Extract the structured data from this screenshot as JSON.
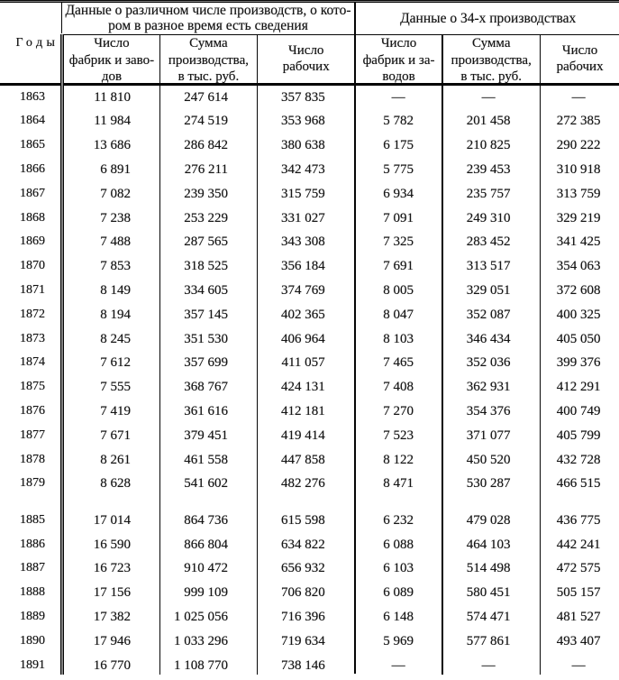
{
  "table": {
    "year_column_header": "Годы",
    "groups": [
      {
        "title_lines": [
          "Данные о различном числе производств, о кото-",
          "ром в разное время есть сведения"
        ],
        "columns": [
          {
            "lines": [
              "Число",
              "фабрик и заво-",
              "дов"
            ]
          },
          {
            "lines": [
              "Сумма",
              "производства,",
              "в тыс. руб."
            ]
          },
          {
            "lines": [
              "Число",
              "рабочих"
            ]
          }
        ]
      },
      {
        "title_lines": [
          "Данные о 34-х производствах"
        ],
        "columns": [
          {
            "lines": [
              "Число",
              "фабрик и за-",
              "водов"
            ]
          },
          {
            "lines": [
              "Сумма",
              "производства,",
              "в тыс. руб."
            ]
          },
          {
            "lines": [
              "Число",
              "рабочих"
            ]
          }
        ]
      }
    ],
    "missing_value_symbol": "—",
    "rows": [
      {
        "year": "1863",
        "values": [
          "11 810",
          "247 614",
          "357 835",
          "—",
          "—",
          "—"
        ]
      },
      {
        "year": "1864",
        "values": [
          "11 984",
          "274 519",
          "353 968",
          "5 782",
          "201 458",
          "272 385"
        ]
      },
      {
        "year": "1865",
        "values": [
          "13 686",
          "286 842",
          "380 638",
          "6 175",
          "210 825",
          "290 222"
        ]
      },
      {
        "year": "1866",
        "values": [
          "6 891",
          "276 211",
          "342 473",
          "5 775",
          "239 453",
          "310 918"
        ]
      },
      {
        "year": "1867",
        "values": [
          "7 082",
          "239 350",
          "315 759",
          "6 934",
          "235 757",
          "313 759"
        ]
      },
      {
        "year": "1868",
        "values": [
          "7 238",
          "253 229",
          "331 027",
          "7 091",
          "249 310",
          "329 219"
        ]
      },
      {
        "year": "1869",
        "values": [
          "7 488",
          "287 565",
          "343 308",
          "7 325",
          "283 452",
          "341 425"
        ]
      },
      {
        "year": "1870",
        "values": [
          "7 853",
          "318 525",
          "356 184",
          "7 691",
          "313 517",
          "354 063"
        ]
      },
      {
        "year": "1871",
        "values": [
          "8 149",
          "334 605",
          "374 769",
          "8 005",
          "329 051",
          "372 608"
        ]
      },
      {
        "year": "1872",
        "values": [
          "8 194",
          "357 145",
          "402 365",
          "8 047",
          "352 087",
          "400 325"
        ]
      },
      {
        "year": "1873",
        "values": [
          "8 245",
          "351 530",
          "406 964",
          "8 103",
          "346 434",
          "405 050"
        ]
      },
      {
        "year": "1874",
        "values": [
          "7 612",
          "357 699",
          "411 057",
          "7 465",
          "352 036",
          "399 376"
        ]
      },
      {
        "year": "1875",
        "values": [
          "7 555",
          "368 767",
          "424 131",
          "7 408",
          "362 931",
          "412 291"
        ]
      },
      {
        "year": "1876",
        "values": [
          "7 419",
          "361 616",
          "412 181",
          "7 270",
          "354 376",
          "400 749"
        ]
      },
      {
        "year": "1877",
        "values": [
          "7 671",
          "379 451",
          "419 414",
          "7 523",
          "371 077",
          "405 799"
        ]
      },
      {
        "year": "1878",
        "values": [
          "8 261",
          "461 558",
          "447 858",
          "8 122",
          "450 520",
          "432 728"
        ]
      },
      {
        "year": "1879",
        "values": [
          "8 628",
          "541 602",
          "482 276",
          "8 471",
          "530 287",
          "466 515"
        ]
      },
      {
        "spacer": true,
        "year": "",
        "values": [
          "",
          "",
          "",
          "",
          "",
          ""
        ]
      },
      {
        "year": "1885",
        "values": [
          "17 014",
          "864 736",
          "615 598",
          "6 232",
          "479 028",
          "436 775"
        ]
      },
      {
        "year": "1886",
        "values": [
          "16 590",
          "866 804",
          "634 822",
          "6 088",
          "464 103",
          "442 241"
        ]
      },
      {
        "year": "1887",
        "values": [
          "16 723",
          "910 472",
          "656 932",
          "6 103",
          "514 498",
          "472 575"
        ]
      },
      {
        "year": "1888",
        "values": [
          "17 156",
          "999 109",
          "706 820",
          "6 089",
          "580 451",
          "505 157"
        ]
      },
      {
        "year": "1889",
        "values": [
          "17 382",
          "1 025 056",
          "716 396",
          "6 148",
          "574 471",
          "481 527"
        ]
      },
      {
        "year": "1890",
        "values": [
          "17 946",
          "1 033 296",
          "719 634",
          "5 969",
          "577 861",
          "493 407"
        ]
      },
      {
        "year": "1891",
        "values": [
          "16 770",
          "1 108 770",
          "738 146",
          "—",
          "—",
          "—"
        ]
      }
    ]
  },
  "colors": {
    "ink": "#1c1c1c",
    "rule_lines": "#050505",
    "background": "#ffffff"
  }
}
